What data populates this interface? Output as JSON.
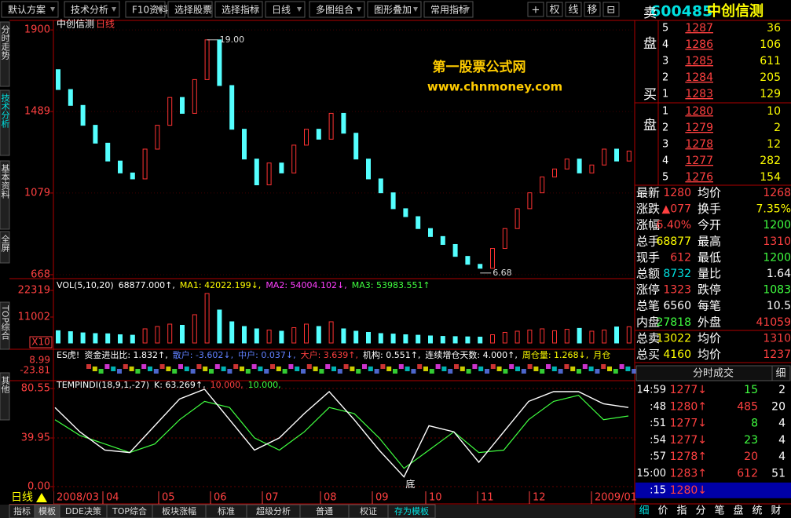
{
  "menu": {
    "items": [
      "默认方案",
      "技术分析",
      "F10资料",
      "选择股票",
      "选择指标",
      "日线",
      "多图组合",
      "图形叠加",
      "常用指标"
    ],
    "icons": [
      "+",
      "权",
      "线",
      "移",
      "⊟"
    ]
  },
  "stock": {
    "code": "600485",
    "name": "中创信测"
  },
  "side_tabs": [
    "分时走势",
    "技术分析",
    "基本资料",
    "全屏",
    "TOP综合",
    "其他"
  ],
  "price_panel": {
    "title": "中创信测",
    "period": "日线",
    "ylim": [
      648,
      1940
    ],
    "yticks": [
      668,
      1079,
      1489,
      1900
    ],
    "candles": [
      [
        1700,
        1600
      ],
      [
        1600,
        1520
      ],
      [
        1520,
        1420
      ],
      [
        1420,
        1330
      ],
      [
        1330,
        1240
      ],
      [
        1240,
        1180
      ],
      [
        1180,
        1150
      ],
      [
        1150,
        1300
      ],
      [
        1300,
        1420
      ],
      [
        1420,
        1560
      ],
      [
        1560,
        1480
      ],
      [
        1480,
        1650
      ],
      [
        1650,
        1850
      ],
      [
        1850,
        1620
      ],
      [
        1620,
        1400
      ],
      [
        1400,
        1250
      ],
      [
        1250,
        1120
      ],
      [
        1120,
        1230
      ],
      [
        1230,
        1180
      ],
      [
        1180,
        1320
      ],
      [
        1320,
        1400
      ],
      [
        1400,
        1350
      ],
      [
        1350,
        1480
      ],
      [
        1480,
        1380
      ],
      [
        1380,
        1250
      ],
      [
        1250,
        1150
      ],
      [
        1150,
        1080
      ],
      [
        1080,
        1000
      ],
      [
        1000,
        960
      ],
      [
        960,
        900
      ],
      [
        900,
        860
      ],
      [
        860,
        820
      ],
      [
        820,
        760
      ],
      [
        760,
        720
      ],
      [
        720,
        700
      ],
      [
        700,
        800
      ],
      [
        800,
        900
      ],
      [
        900,
        1000
      ],
      [
        1000,
        1080
      ],
      [
        1080,
        1160
      ],
      [
        1160,
        1200
      ],
      [
        1200,
        1250
      ],
      [
        1250,
        1180
      ],
      [
        1180,
        1220
      ],
      [
        1220,
        1300
      ],
      [
        1300,
        1240
      ],
      [
        1240,
        1290
      ]
    ],
    "high_label": "19.00",
    "low_label": "6.68",
    "watermark": [
      "第一股票公式网",
      "www.chnmoney.com"
    ]
  },
  "vol_panel": {
    "header": [
      "VOL(5,10,20)",
      "68877.000↑,",
      "MA1: 42022.199↓,",
      "MA2: 54004.102↓,",
      "MA3: 53983.551↑"
    ],
    "ylim": [
      0,
      26650
    ],
    "yticks": [
      11002,
      22319
    ],
    "unit": "X10",
    "values": [
      5200,
      4800,
      4300,
      4000,
      3900,
      3500,
      3300,
      6000,
      7000,
      8000,
      7500,
      12000,
      21000,
      14000,
      9000,
      7000,
      6000,
      5500,
      5000,
      6500,
      8000,
      7000,
      9000,
      6000,
      5000,
      4500,
      4000,
      3800,
      3500,
      3300,
      3000,
      2800,
      2700,
      2600,
      2500,
      3500,
      4500,
      5000,
      5500,
      6000,
      5200,
      5800,
      6200,
      5000,
      5500,
      6800,
      6888
    ]
  },
  "es_panel": {
    "header": [
      "ES虎!",
      "资金进出比: 1.832↑,",
      "散户: -3.602↓,",
      "中户: 0.037↓,",
      "大户: 3.639↑,",
      "机构: 0.551↑,",
      "连续增仓天数: 4.000↑,",
      "周仓量: 1.268↓,",
      "月仓"
    ],
    "ticks": [
      "8.99",
      "-23.81"
    ]
  },
  "tempindi": {
    "header": [
      "TEMPINDI(18,9,1,-27)",
      "K: 63.269↑,",
      "10.000,",
      "10.000,"
    ],
    "ylim": [
      -12.9,
      83.8
    ],
    "yticks": [
      {
        "value": 0,
        "label": "0.00"
      },
      39.95,
      80.55
    ],
    "k": [
      65,
      45,
      30,
      28,
      50,
      72,
      80,
      55,
      30,
      40,
      60,
      78,
      55,
      30,
      8,
      50,
      45,
      20,
      45,
      70,
      78,
      78,
      68,
      65
    ],
    "d": [
      55,
      42,
      35,
      28,
      35,
      55,
      70,
      65,
      40,
      30,
      45,
      65,
      60,
      40,
      15,
      30,
      45,
      28,
      30,
      55,
      70,
      75,
      55,
      58
    ],
    "bottom_label": "底"
  },
  "x_labels": [
    "2008/03",
    "04",
    "05",
    "06",
    "07",
    "08",
    "09",
    "10",
    "11",
    "12",
    "2009/01"
  ],
  "period_label": "日线",
  "bottom_tabs": [
    "指标",
    "模板",
    "DDE决策",
    "TOP综合",
    "板块涨幅",
    "标准",
    "超级分析",
    "普通",
    "权证",
    "存为模板"
  ],
  "order_book": {
    "ask_label": "卖盘",
    "bid_label": "买盘",
    "asks": [
      [
        "5",
        "1287",
        "36"
      ],
      [
        "4",
        "1286",
        "106"
      ],
      [
        "3",
        "1285",
        "611"
      ],
      [
        "2",
        "1284",
        "205"
      ],
      [
        "1",
        "1283",
        "129"
      ]
    ],
    "bids": [
      [
        "1",
        "1280",
        "10"
      ],
      [
        "2",
        "1279",
        "2"
      ],
      [
        "3",
        "1278",
        "12"
      ],
      [
        "4",
        "1277",
        "282"
      ],
      [
        "5",
        "1276",
        "154"
      ]
    ]
  },
  "quote": [
    [
      "最新",
      "1280",
      "均价",
      "1268"
    ],
    [
      "涨跌",
      "▲077",
      "换手",
      "7.35%"
    ],
    [
      "涨幅",
      "6.40%",
      "今开",
      "1200"
    ],
    [
      "总手",
      "68877",
      "最高",
      "1310"
    ],
    [
      "现手",
      "612",
      "最低",
      "1200"
    ],
    [
      "总额",
      "8732",
      "量比",
      "1.64"
    ],
    [
      "涨停",
      "1323",
      "跌停",
      "1083"
    ],
    [
      "总笔",
      "6560",
      "每笔",
      "10.5"
    ],
    [
      "内盘",
      "27818",
      "外盘",
      "41059"
    ],
    [
      "总卖",
      "13022",
      "均价",
      "1310"
    ],
    [
      "总买",
      "4160",
      "均价",
      "1237"
    ]
  ],
  "trades": {
    "title": "分时成交",
    "detail": "细",
    "rows": [
      [
        "14:59",
        "1277↓",
        "15",
        "2"
      ],
      [
        ":48",
        "1280↑",
        "485",
        "20"
      ],
      [
        ":51",
        "1277↓",
        "8",
        "4"
      ],
      [
        ":54",
        "1277↓",
        "23",
        "4"
      ],
      [
        ":57",
        "1278↑",
        "20",
        "4"
      ],
      [
        "15:00",
        "1283↑",
        "612",
        "51"
      ],
      [
        ":15",
        "1280↓",
        "",
        ""
      ]
    ]
  },
  "right_tabs": [
    "细",
    "价",
    "指",
    "分",
    "笔",
    "盘",
    "统",
    "财"
  ]
}
